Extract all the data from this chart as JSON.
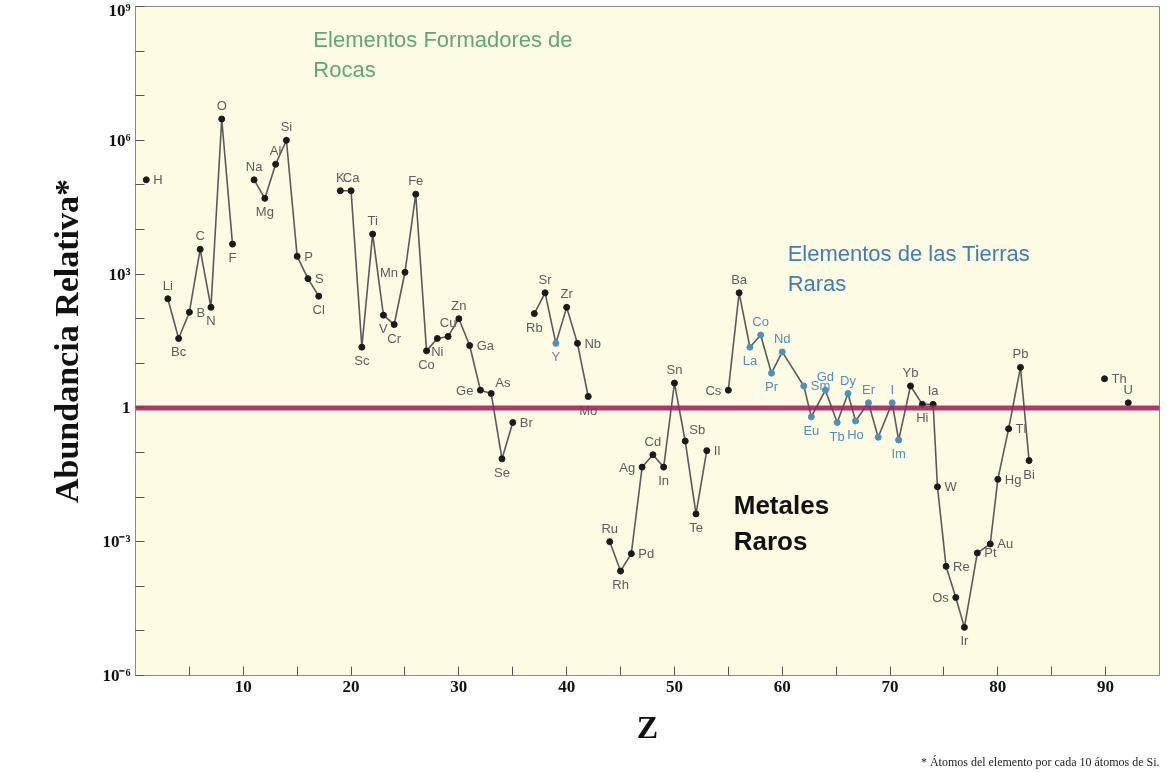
{
  "chart_data": {
    "type": "line",
    "xlabel": "Z",
    "ylabel": "Abundancia Relativa*",
    "log": "y",
    "marker": "circle",
    "line_style": "solid",
    "xlim": [
      0,
      95
    ],
    "xticks": [
      {
        "value": 5,
        "label": null
      },
      10,
      {
        "value": 15,
        "label": null
      },
      20,
      {
        "value": 25,
        "label": null
      },
      30,
      {
        "value": 35,
        "label": null
      },
      40,
      {
        "value": 45,
        "label": null
      },
      50,
      {
        "value": 55,
        "label": null
      },
      60,
      {
        "value": 65,
        "label": null
      },
      70,
      {
        "value": 75,
        "label": null
      },
      80,
      {
        "value": 85,
        "label": null
      },
      90
    ],
    "ylim": [
      1e-06,
      1000000000.0
    ],
    "yticks": [
      {
        "value": 1e-06,
        "label": "10⁻⁶"
      },
      {
        "value": 1e-05,
        "label": null
      },
      {
        "value": 0.0001,
        "label": null
      },
      {
        "value": 0.001,
        "label": "10⁻³"
      },
      {
        "value": 0.01,
        "label": null
      },
      {
        "value": 0.1,
        "label": null
      },
      {
        "value": 1,
        "label": "1"
      },
      {
        "value": 10,
        "label": null
      },
      {
        "value": 100,
        "label": null
      },
      {
        "value": 1000,
        "label": "10³"
      },
      {
        "value": 10000.0,
        "label": null
      },
      {
        "value": 100000.0,
        "label": null
      },
      {
        "value": 1000000.0,
        "label": "10⁶"
      },
      {
        "value": 10000000.0,
        "label": null
      },
      {
        "value": 100000000.0,
        "label": null
      },
      {
        "value": 1000000000.0,
        "label": "10⁹"
      }
    ],
    "series": [
      {
        "color": "#5a5a5a",
        "x": [
          1,
          2,
          3,
          4,
          5,
          6,
          7,
          8,
          9,
          10,
          11,
          12,
          13,
          14,
          15,
          16,
          17,
          18,
          19,
          20,
          21,
          22,
          23,
          24,
          25,
          26,
          27,
          28,
          29,
          30,
          31,
          32,
          33,
          34,
          35,
          36,
          37,
          38,
          39,
          40,
          41,
          42,
          43,
          44,
          45,
          46,
          47,
          48,
          49,
          50,
          51,
          52,
          53,
          54,
          55,
          56,
          57,
          58,
          59,
          60,
          62,
          62.7,
          64,
          65.1,
          66.1,
          66.8,
          68,
          68.9,
          70.2,
          70.8,
          71.9,
          73,
          74,
          74.4,
          75.2,
          76.1,
          76.9,
          78.1,
          79.3,
          80,
          81,
          82.1,
          82.9,
          86,
          89.9,
          91,
          92.1
        ],
        "values": [
          130000.0,
          null,
          280,
          36,
          140,
          3600,
          180,
          3000000.0,
          4700,
          null,
          130000.0,
          50000.0,
          290000.0,
          1000000.0,
          2500,
          790,
          320,
          null,
          74000.0,
          74000.0,
          23,
          7900,
          120,
          74,
          1100,
          62000.0,
          19,
          36,
          40,
          100,
          25,
          2.5,
          2.1,
          0.072,
          0.47,
          null,
          130,
          380,
          28,
          180,
          28,
          1.8,
          null,
          0.001,
          0.00022,
          0.00054,
          0.047,
          0.089,
          0.047,
          3.6,
          0.18,
          0.0042,
          0.11,
          null,
          2.5,
          380,
          23,
          43,
          6.0,
          18,
          3.1,
          0.63,
          2.5,
          0.47,
          2.1,
          0.51,
          1.3,
          0.22,
          1.3,
          0.19,
          3.1,
          1.2,
          1.2,
          0.017,
          0.00028,
          5.6e-05,
          1.2e-05,
          0.00056,
          0.00089,
          0.025,
          0.34,
          8.1,
          0.066,
          null,
          4.5,
          null,
          1.3
        ],
        "colors": [
          "#1a1a1a",
          "#1a1a1a",
          "#1a1a1a",
          "#1a1a1a",
          "#1a1a1a",
          "#1a1a1a",
          "#1a1a1a",
          "#1a1a1a",
          "#1a1a1a",
          "#1a1a1a",
          "#1a1a1a",
          "#1a1a1a",
          "#1a1a1a",
          "#1a1a1a",
          "#1a1a1a",
          "#1a1a1a",
          "#1a1a1a",
          "#1a1a1a",
          "#1a1a1a",
          "#1a1a1a",
          "#1a1a1a",
          "#1a1a1a",
          "#1a1a1a",
          "#1a1a1a",
          "#1a1a1a",
          "#1a1a1a",
          "#1a1a1a",
          "#1a1a1a",
          "#1a1a1a",
          "#1a1a1a",
          "#1a1a1a",
          "#1a1a1a",
          "#1a1a1a",
          "#1a1a1a",
          "#1a1a1a",
          "#1a1a1a",
          "#1a1a1a",
          "#1a1a1a",
          "#4f8fc0",
          "#1a1a1a",
          "#1a1a1a",
          "#1a1a1a",
          "#1a1a1a",
          "#1a1a1a",
          "#1a1a1a",
          "#1a1a1a",
          "#1a1a1a",
          "#1a1a1a",
          "#1a1a1a",
          "#1a1a1a",
          "#1a1a1a",
          "#1a1a1a",
          "#1a1a1a",
          "#1a1a1a",
          "#1a1a1a",
          "#1a1a1a",
          "#4f8fc0",
          "#4f8fc0",
          "#4f8fc0",
          "#4f8fc0",
          "#4f8fc0",
          "#4f8fc0",
          "#4f8fc0",
          "#4f8fc0",
          "#4f8fc0",
          "#4f8fc0",
          "#4f8fc0",
          "#4f8fc0",
          "#4f8fc0",
          "#4f8fc0",
          "#1a1a1a",
          "#1a1a1a",
          "#1a1a1a",
          "#1a1a1a",
          "#1a1a1a",
          "#1a1a1a",
          "#1a1a1a",
          "#1a1a1a",
          "#1a1a1a",
          "#1a1a1a",
          "#1a1a1a",
          "#1a1a1a",
          "#1a1a1a",
          "#1a1a1a",
          "#1a1a1a",
          "#1a1a1a",
          "#1a1a1a"
        ]
      }
    ],
    "ref_lines": [
      {
        "axis": "y",
        "value": 1,
        "color": "#a3245e"
      }
    ],
    "annotations": [
      "Elementos Formadores de Rocas",
      "Elementos de las Tierras Raras",
      "Metales Raros",
      "* Átomos del elemento por cada 10 átomos de Si.",
      {
        "text": "H",
        "x": 1,
        "y": 130000.0
      },
      {
        "text": "Li",
        "x": 3,
        "y": 280
      },
      {
        "text": "Bc",
        "x": 4,
        "y": 36
      },
      {
        "text": "B",
        "x": 5,
        "y": 140
      },
      {
        "text": "C",
        "x": 6,
        "y": 3600
      },
      {
        "text": "N",
        "x": 7,
        "y": 180
      },
      {
        "text": "O",
        "x": 8,
        "y": 3000000.0
      },
      {
        "text": "F",
        "x": 9,
        "y": 4700
      },
      {
        "text": "Na",
        "x": 11,
        "y": 130000.0
      },
      {
        "text": "Mg",
        "x": 12,
        "y": 50000.0
      },
      {
        "text": "Al",
        "x": 13,
        "y": 290000.0
      },
      {
        "text": "Si",
        "x": 14,
        "y": 1000000.0
      },
      {
        "text": "P",
        "x": 15,
        "y": 2500
      },
      {
        "text": "S",
        "x": 16,
        "y": 790
      },
      {
        "text": "Cl",
        "x": 17,
        "y": 320
      },
      {
        "text": "K",
        "x": 19,
        "y": 74000.0
      },
      {
        "text": "Ca",
        "x": 20,
        "y": 74000.0
      },
      {
        "text": "Sc",
        "x": 21,
        "y": 23
      },
      {
        "text": "Ti",
        "x": 22,
        "y": 7900
      },
      {
        "text": "V",
        "x": 23,
        "y": 120
      },
      {
        "text": "Cr",
        "x": 24,
        "y": 74
      },
      {
        "text": "Mn",
        "x": 25,
        "y": 1100
      },
      {
        "text": "Fe",
        "x": 26,
        "y": 62000.0
      },
      {
        "text": "Co",
        "x": 27,
        "y": 19
      },
      {
        "text": "Ni",
        "x": 28,
        "y": 36
      },
      {
        "text": "Cu",
        "x": 29,
        "y": 40
      },
      {
        "text": "Zn",
        "x": 30,
        "y": 100
      },
      {
        "text": "Ga",
        "x": 31,
        "y": 25
      },
      {
        "text": "Ge",
        "x": 32,
        "y": 2.5
      },
      {
        "text": "As",
        "x": 33,
        "y": 2.1
      },
      {
        "text": "Se",
        "x": 34,
        "y": 0.072
      },
      {
        "text": "Br",
        "x": 35,
        "y": 0.47
      },
      {
        "text": "Rb",
        "x": 37,
        "y": 130
      },
      {
        "text": "Sr",
        "x": 38,
        "y": 380
      },
      {
        "text": "Y",
        "x": 39,
        "y": 28
      },
      {
        "text": "Zr",
        "x": 40,
        "y": 180
      },
      {
        "text": "Nb",
        "x": 41,
        "y": 28
      },
      {
        "text": "Mo",
        "x": 42,
        "y": 1.8
      },
      {
        "text": "Ru",
        "x": 44,
        "y": 0.001
      },
      {
        "text": "Rh",
        "x": 45,
        "y": 0.00022
      },
      {
        "text": "Pd",
        "x": 46,
        "y": 0.00054
      },
      {
        "text": "Ag",
        "x": 47,
        "y": 0.047
      },
      {
        "text": "Cd",
        "x": 48,
        "y": 0.089
      },
      {
        "text": "In",
        "x": 49,
        "y": 0.047
      },
      {
        "text": "Sn",
        "x": 50,
        "y": 3.6
      },
      {
        "text": "Sb",
        "x": 51,
        "y": 0.18
      },
      {
        "text": "Te",
        "x": 52,
        "y": 0.0042
      },
      {
        "text": "Il",
        "x": 53,
        "y": 0.11
      },
      {
        "text": "Cs",
        "x": 55,
        "y": 2.5
      },
      {
        "text": "Ba",
        "x": 56,
        "y": 380
      },
      {
        "text": "La",
        "x": 57,
        "y": 23
      },
      {
        "text": "Co",
        "x": 58,
        "y": 43
      },
      {
        "text": "Pr",
        "x": 59,
        "y": 6.0
      },
      {
        "text": "Nd",
        "x": 60,
        "y": 18
      },
      {
        "text": "Sm",
        "x": 62,
        "y": 3.1
      },
      {
        "text": "Eu",
        "x": 62.7,
        "y": 0.63
      },
      {
        "text": "Gd",
        "x": 64,
        "y": 2.5
      },
      {
        "text": "Tb",
        "x": 65.1,
        "y": 0.47
      },
      {
        "text": "Dy",
        "x": 66.1,
        "y": 2.1
      },
      {
        "text": "Ho",
        "x": 66.8,
        "y": 0.51
      },
      {
        "text": "Er",
        "x": 68,
        "y": 1.3
      },
      {
        "text": "I",
        "x": 70.2,
        "y": 1.3
      },
      {
        "text": "Im",
        "x": 70.8,
        "y": 0.19
      },
      {
        "text": "Yb",
        "x": 71.9,
        "y": 3.1
      },
      {
        "text": "Hi",
        "x": 73,
        "y": 1.2
      },
      {
        "text": "Ia",
        "x": 74,
        "y": 1.2
      },
      {
        "text": "W",
        "x": 74.4,
        "y": 0.017
      },
      {
        "text": "Re",
        "x": 75.2,
        "y": 0.00028
      },
      {
        "text": "Os",
        "x": 76.1,
        "y": 5.6e-05
      },
      {
        "text": "Ir",
        "x": 76.9,
        "y": 1.2e-05
      },
      {
        "text": "Pt",
        "x": 78.1,
        "y": 0.00056
      },
      {
        "text": "Au",
        "x": 79.3,
        "y": 0.00089
      },
      {
        "text": "Hg",
        "x": 80,
        "y": 0.025
      },
      {
        "text": "Tl",
        "x": 81,
        "y": 0.34
      },
      {
        "text": "Pb",
        "x": 82.1,
        "y": 8.1
      },
      {
        "text": "Bi",
        "x": 82.9,
        "y": 0.066
      },
      {
        "text": "Th",
        "x": 89.9,
        "y": 4.5
      },
      {
        "text": "U",
        "x": 92.1,
        "y": 1.3
      }
    ]
  }
}
